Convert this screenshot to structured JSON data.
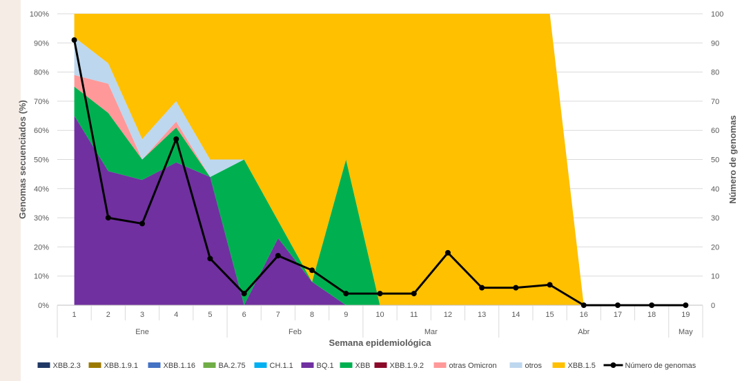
{
  "chart_data": {
    "type": "area",
    "x": [
      "1",
      "2",
      "3",
      "4",
      "5",
      "6",
      "7",
      "8",
      "9",
      "10",
      "11",
      "12",
      "13",
      "14",
      "15",
      "16",
      "17",
      "18",
      "19"
    ],
    "months": [
      {
        "label": "Ene",
        "from": 1,
        "to": 5
      },
      {
        "label": "Feb",
        "from": 6,
        "to": 9
      },
      {
        "label": "Mar",
        "from": 10,
        "to": 13
      },
      {
        "label": "Abr",
        "from": 14,
        "to": 18
      },
      {
        "label": "May",
        "from": 19,
        "to": 19
      }
    ],
    "xlabel": "Semana epidemiológica",
    "ylabel": "Genomas secuenciados (%)",
    "y2label": "Número de genomas",
    "ylim": [
      0,
      100
    ],
    "y2lim": [
      0,
      100
    ],
    "yticks": [
      "0%",
      "10%",
      "20%",
      "30%",
      "40%",
      "50%",
      "60%",
      "70%",
      "80%",
      "90%",
      "100%"
    ],
    "y2ticks": [
      "0",
      "10",
      "20",
      "30",
      "40",
      "50",
      "60",
      "70",
      "80",
      "90",
      "100"
    ],
    "grid": true,
    "legend_position": "bottom",
    "series": [
      {
        "name": "BQ.1",
        "color": "#7030a0",
        "values": [
          65,
          46,
          43,
          49,
          44,
          0,
          23,
          8,
          0,
          0,
          0,
          0,
          0,
          0,
          0,
          0,
          0,
          0,
          0
        ]
      },
      {
        "name": "XBB",
        "color": "#00b050",
        "values": [
          10,
          20,
          7,
          12,
          0,
          50,
          6,
          0,
          50,
          0,
          0,
          0,
          0,
          0,
          0,
          0,
          0,
          0,
          0
        ]
      },
      {
        "name": "otras Omicron",
        "color": "#ff9999",
        "values": [
          4,
          10,
          0,
          2,
          0,
          0,
          0,
          0,
          0,
          0,
          0,
          0,
          0,
          0,
          0,
          0,
          0,
          0,
          0
        ]
      },
      {
        "name": "otros",
        "color": "#bdd7ee",
        "values": [
          13,
          7,
          7,
          7,
          6,
          0,
          0,
          0,
          0,
          0,
          0,
          0,
          0,
          0,
          0,
          0,
          0,
          0,
          0
        ]
      },
      {
        "name": "XBB.1.5",
        "color": "#ffc000",
        "values": [
          8,
          17,
          43,
          30,
          50,
          50,
          71,
          92,
          50,
          100,
          100,
          100,
          100,
          100,
          100,
          0,
          0,
          0,
          0
        ]
      }
    ],
    "line_series": {
      "name": "Número de genomas",
      "color": "#000000",
      "values": [
        91,
        30,
        28,
        57,
        16,
        4,
        17,
        12,
        4,
        4,
        4,
        18,
        6,
        6,
        7,
        0,
        0,
        0,
        0
      ]
    },
    "legend": [
      {
        "name": "XBB.2.3",
        "color": "#203864"
      },
      {
        "name": "XBB.1.9.1",
        "color": "#9c7a00"
      },
      {
        "name": "XBB.1.16",
        "color": "#4472c4"
      },
      {
        "name": "BA.2.75",
        "color": "#70ad47"
      },
      {
        "name": "CH.1.1",
        "color": "#00b0f0"
      },
      {
        "name": "BQ.1",
        "color": "#7030a0"
      },
      {
        "name": "XBB",
        "color": "#00b050"
      },
      {
        "name": "XBB.1.9.2",
        "color": "#8b0a2a"
      },
      {
        "name": "otras Omicron",
        "color": "#ff9999"
      },
      {
        "name": "otros",
        "color": "#bdd7ee"
      },
      {
        "name": "XBB.1.5",
        "color": "#ffc000"
      },
      {
        "name": "Número de genomas",
        "color": "#000000",
        "kind": "line"
      }
    ]
  }
}
